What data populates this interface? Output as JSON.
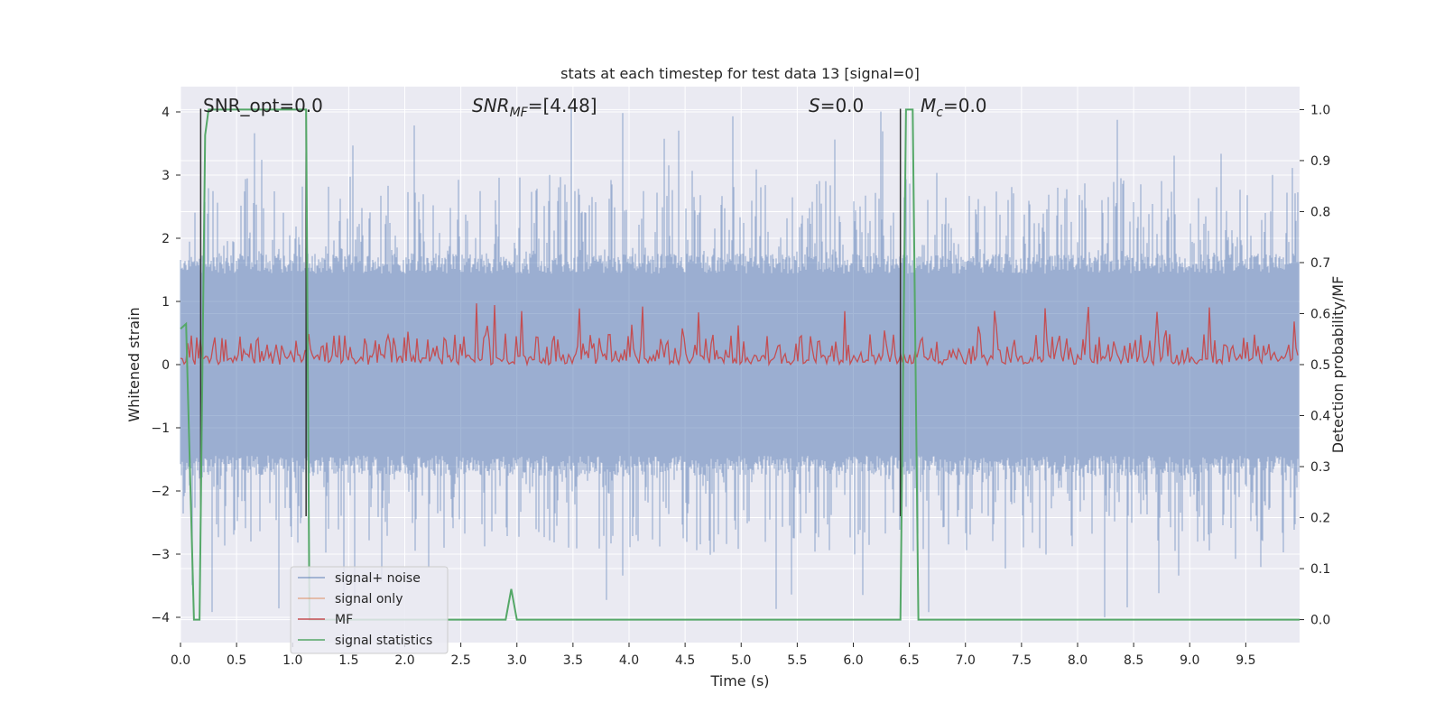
{
  "chart_data": {
    "type": "line",
    "title": "stats at each timestep for test data 13 [signal=0]",
    "xlabel": "Time (s)",
    "ylabel": "Whitened strain",
    "y2label": "Detection probability/MF",
    "xlim": [
      0.0,
      9.98
    ],
    "ylim": [
      -4.4,
      4.4
    ],
    "y2lim": [
      -0.045,
      1.045
    ],
    "xticks": [
      "0.0",
      "0.5",
      "1.0",
      "1.5",
      "2.0",
      "2.5",
      "3.0",
      "3.5",
      "4.0",
      "4.5",
      "5.0",
      "5.5",
      "6.0",
      "6.5",
      "7.0",
      "7.5",
      "8.0",
      "8.5",
      "9.0",
      "9.5"
    ],
    "yticks": [
      "−4",
      "−3",
      "−2",
      "−1",
      "0",
      "1",
      "2",
      "3",
      "4"
    ],
    "y2ticks": [
      "0.0",
      "0.1",
      "0.2",
      "0.3",
      "0.4",
      "0.5",
      "0.6",
      "0.7",
      "0.8",
      "0.9",
      "1.0"
    ],
    "grid": true,
    "legend_position": "lower-left",
    "annotations": [
      {
        "id": "snr-opt",
        "text": "SNR_opt=0.0",
        "x": 0.19
      },
      {
        "id": "snr-mf",
        "text": "SNR_MF=[4.48]",
        "x": 2.6
      },
      {
        "id": "s",
        "text": "S=0.0",
        "x": 5.6
      },
      {
        "id": "mc",
        "text": "M_c=0.0",
        "x": 6.6
      }
    ],
    "vlines": [
      0.18,
      1.12,
      6.42
    ],
    "series": [
      {
        "name": "signal+ noise",
        "color": "#4c72b0",
        "alpha": 0.5,
        "axis": "left",
        "kind": "noise-envelope",
        "typical_amplitude": 1.6,
        "peak_amplitude": 4.0
      },
      {
        "name": "signal only",
        "color": "#dd8452",
        "axis": "left",
        "values": []
      },
      {
        "name": "MF",
        "color": "#c44e52",
        "axis": "right",
        "kind": "noise-band",
        "baseline": 0.5,
        "typical_max": 0.56,
        "peak_max": 0.62
      },
      {
        "name": "signal statistics",
        "color": "#55a868",
        "axis": "right",
        "x": [
          0.0,
          0.05,
          0.12,
          0.17,
          0.22,
          0.25,
          1.12,
          1.15,
          1.55,
          1.6,
          2.9,
          2.95,
          3.0,
          6.42,
          6.47,
          6.53,
          6.58,
          9.98
        ],
        "y": [
          0.57,
          0.58,
          0.0,
          0.0,
          0.95,
          1.0,
          1.0,
          0.0,
          0.0,
          0.0,
          0.0,
          0.06,
          0.0,
          0.0,
          1.0,
          1.0,
          0.0,
          0.0
        ]
      }
    ]
  }
}
